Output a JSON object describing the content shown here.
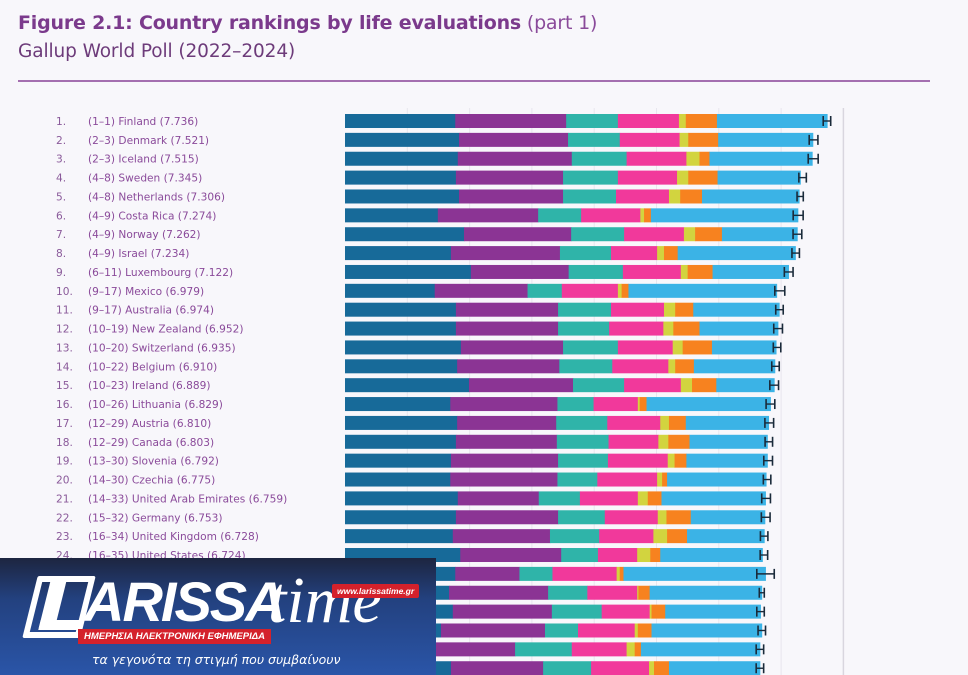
{
  "header": {
    "title_bold": "Figure 2.1: Country rankings by life evaluations",
    "title_light": " (part 1)",
    "subtitle": "Gallup World Poll (2022–2024)"
  },
  "chart_data": {
    "type": "bar",
    "orientation": "horizontal",
    "stacked": true,
    "title": "Figure 2.1: Country rankings by life evaluations (part 1)",
    "subtitle": "Gallup World Poll (2022–2024)",
    "xlim": [
      0,
      8
    ],
    "grid": true,
    "legend": "none visible",
    "segment_colors": [
      "#176a99",
      "#8b3494",
      "#2fb4a9",
      "#f1399b",
      "#d2d43f",
      "#f7821f",
      "#3bb3e6"
    ],
    "error_bar_color": "#1a2a3a",
    "rows": [
      {
        "rank": "1.",
        "label": "(1–1) Finland (7.736)",
        "score": 7.736,
        "ci": 0.06,
        "segments": [
          1.77,
          1.78,
          0.83,
          0.98,
          0.11,
          0.5,
          1.77
        ]
      },
      {
        "rank": "2.",
        "label": "(2–3) Denmark (7.521)",
        "score": 7.521,
        "ci": 0.07,
        "segments": [
          1.83,
          1.75,
          0.83,
          0.96,
          0.14,
          0.48,
          1.52
        ]
      },
      {
        "rank": "3.",
        "label": "(2–3) Iceland (7.515)",
        "score": 7.515,
        "ci": 0.08,
        "segments": [
          1.81,
          1.83,
          0.88,
          0.96,
          0.21,
          0.16,
          1.65
        ]
      },
      {
        "rank": "4.",
        "label": "(4–8) Sweden (7.345)",
        "score": 7.345,
        "ci": 0.06,
        "segments": [
          1.78,
          1.72,
          0.88,
          0.95,
          0.18,
          0.47,
          1.33
        ]
      },
      {
        "rank": "5.",
        "label": "(4–8) Netherlands (7.306)",
        "score": 7.306,
        "ci": 0.05,
        "segments": [
          1.83,
          1.67,
          0.85,
          0.85,
          0.18,
          0.35,
          1.56
        ]
      },
      {
        "rank": "6.",
        "label": "(4–9) Costa Rica (7.274)",
        "score": 7.274,
        "ci": 0.08,
        "segments": [
          1.49,
          1.61,
          0.69,
          0.95,
          0.06,
          0.11,
          2.36
        ]
      },
      {
        "rank": "7.",
        "label": "(4–9) Norway (7.262)",
        "score": 7.262,
        "ci": 0.07,
        "segments": [
          1.91,
          1.72,
          0.85,
          0.96,
          0.18,
          0.43,
          1.21
        ]
      },
      {
        "rank": "8.",
        "label": "(4–9) Israel (7.234)",
        "score": 7.234,
        "ci": 0.06,
        "segments": [
          1.7,
          1.75,
          0.82,
          0.74,
          0.11,
          0.22,
          1.89
        ]
      },
      {
        "rank": "9.",
        "label": "(6–11) Luxembourg (7.122)",
        "score": 7.122,
        "ci": 0.07,
        "segments": [
          2.02,
          1.57,
          0.87,
          0.93,
          0.11,
          0.4,
          1.22
        ]
      },
      {
        "rank": "10.",
        "label": "(9–17) Mexico (6.979)",
        "score": 6.979,
        "ci": 0.08,
        "segments": [
          1.44,
          1.49,
          0.55,
          0.9,
          0.06,
          0.11,
          2.38
        ]
      },
      {
        "rank": "11.",
        "label": "(9–17) Australia (6.974)",
        "score": 6.974,
        "ci": 0.06,
        "segments": [
          1.78,
          1.64,
          0.85,
          0.85,
          0.18,
          0.29,
          1.38
        ]
      },
      {
        "rank": "12.",
        "label": "(10–19) New Zealand (6.952)",
        "score": 6.952,
        "ci": 0.07,
        "segments": [
          1.78,
          1.64,
          0.82,
          0.87,
          0.16,
          0.42,
          1.26
        ]
      },
      {
        "rank": "13.",
        "label": "(10–20) Switzerland (6.935)",
        "score": 6.935,
        "ci": 0.06,
        "segments": [
          1.86,
          1.64,
          0.88,
          0.88,
          0.16,
          0.47,
          1.03
        ]
      },
      {
        "rank": "14.",
        "label": "(10–22) Belgium (6.910)",
        "score": 6.91,
        "ci": 0.06,
        "segments": [
          1.8,
          1.64,
          0.85,
          0.9,
          0.11,
          0.3,
          1.3
        ]
      },
      {
        "rank": "15.",
        "label": "(10–23) Ireland (6.889)",
        "score": 6.889,
        "ci": 0.07,
        "segments": [
          1.99,
          1.67,
          0.82,
          0.91,
          0.18,
          0.39,
          0.93
        ]
      },
      {
        "rank": "16.",
        "label": "(10–26) Lithuania (6.829)",
        "score": 6.829,
        "ci": 0.07,
        "segments": [
          1.69,
          1.72,
          0.58,
          0.71,
          0.03,
          0.11,
          1.99
        ]
      },
      {
        "rank": "17.",
        "label": "(12–29) Austria (6.810)",
        "score": 6.81,
        "ci": 0.07,
        "segments": [
          1.8,
          1.59,
          0.82,
          0.85,
          0.14,
          0.27,
          1.33
        ]
      },
      {
        "rank": "18.",
        "label": "(12–29) Canada (6.803)",
        "score": 6.803,
        "ci": 0.06,
        "segments": [
          1.78,
          1.62,
          0.83,
          0.8,
          0.16,
          0.34,
          1.25
        ]
      },
      {
        "rank": "19.",
        "label": "(13–30) Slovenia (6.792)",
        "score": 6.792,
        "ci": 0.07,
        "segments": [
          1.7,
          1.72,
          0.8,
          0.96,
          0.11,
          0.19,
          1.3
        ]
      },
      {
        "rank": "20.",
        "label": "(14–30) Czechia (6.775)",
        "score": 6.775,
        "ci": 0.06,
        "segments": [
          1.69,
          1.72,
          0.64,
          0.96,
          0.08,
          0.08,
          1.59
        ]
      },
      {
        "rank": "21.",
        "label": "(14–33) United Arab Emirates (6.759)",
        "score": 6.759,
        "ci": 0.07,
        "segments": [
          1.81,
          1.3,
          0.66,
          0.93,
          0.16,
          0.22,
          1.67
        ]
      },
      {
        "rank": "22.",
        "label": "(15–32) Germany (6.753)",
        "score": 6.753,
        "ci": 0.07,
        "segments": [
          1.78,
          1.64,
          0.75,
          0.85,
          0.14,
          0.39,
          1.19
        ]
      },
      {
        "rank": "23.",
        "label": "(16–34) United Kingdom (6.728)",
        "score": 6.728,
        "ci": 0.06,
        "segments": [
          1.73,
          1.56,
          0.79,
          0.87,
          0.22,
          0.32,
          1.24
        ]
      },
      {
        "rank": "24.",
        "label": "(16–35) United States (6.724)",
        "score": 6.724,
        "ci": 0.06,
        "segments": [
          1.85,
          1.62,
          0.59,
          0.63,
          0.21,
          0.16,
          1.64
        ]
      },
      {
        "rank": "",
        "label": "",
        "score": 6.75,
        "ci": 0.14,
        "segments": [
          1.77,
          1.03,
          0.53,
          1.03,
          0.05,
          0.06,
          2.28
        ]
      },
      {
        "rank": "",
        "label": "",
        "score": 6.69,
        "ci": 0.04,
        "segments": [
          1.67,
          1.59,
          0.63,
          0.8,
          0.02,
          0.18,
          1.8
        ]
      },
      {
        "rank": "",
        "label": "",
        "score": 6.67,
        "ci": 0.06,
        "segments": [
          1.73,
          1.59,
          0.8,
          0.77,
          0.03,
          0.22,
          1.53
        ]
      },
      {
        "rank": "",
        "label": "",
        "score": 6.69,
        "ci": 0.06,
        "segments": [
          1.54,
          1.67,
          0.53,
          0.91,
          0.05,
          0.22,
          1.77
        ]
      },
      {
        "rank": "",
        "label": "",
        "score": 6.66,
        "ci": 0.06,
        "segments": [
          1.43,
          1.3,
          0.91,
          0.88,
          0.13,
          0.1,
          1.91
        ]
      },
      {
        "rank": "",
        "label": "",
        "score": 6.66,
        "ci": 0.06,
        "segments": [
          1.7,
          1.48,
          0.77,
          0.93,
          0.08,
          0.24,
          1.46
        ]
      }
    ]
  },
  "overlay": {
    "brand": "ARISSA",
    "brand_suffix": "time",
    "url": "www.larissatime.gr",
    "tagline": "ΗΜΕΡΗΣΙΑ ΗΛΕΚΤΡΟΝΙΚΗ ΕΦΗΜΕΡΙΔΑ",
    "slogan": "τα γεγονότα τη στιγμή που συμβαίνουν"
  }
}
